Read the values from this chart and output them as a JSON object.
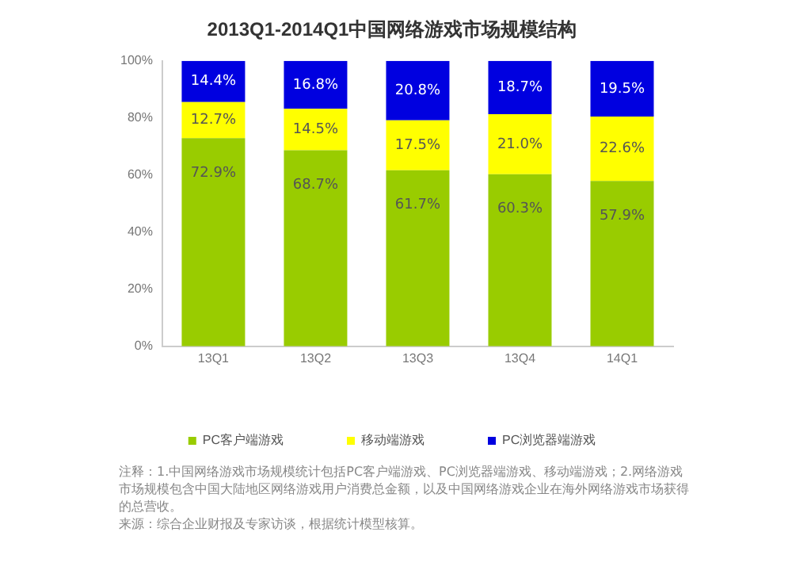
{
  "chart_data": {
    "type": "bar",
    "stacked": true,
    "title": "2013Q1-2014Q1中国网络游戏市场规模结构",
    "categories": [
      "13Q1",
      "13Q2",
      "13Q3",
      "13Q4",
      "14Q1"
    ],
    "series": [
      {
        "name": "PC客户端游戏",
        "color": "#99cc00",
        "values": [
          72.9,
          68.7,
          61.7,
          60.3,
          57.9
        ],
        "value_labels": [
          "72.9%",
          "68.7%",
          "61.7%",
          "60.3%",
          "57.9%"
        ]
      },
      {
        "name": "移动端游戏",
        "color": "#ffff00",
        "values": [
          12.7,
          14.5,
          17.5,
          21.0,
          22.6
        ],
        "value_labels": [
          "12.7%",
          "14.5%",
          "17.5%",
          "21.0%",
          "22.6%"
        ]
      },
      {
        "name": "PC浏览器端游戏",
        "color": "#0000e0",
        "values": [
          14.4,
          16.8,
          20.8,
          18.7,
          19.5
        ],
        "value_labels": [
          "14.4%",
          "16.8%",
          "20.8%",
          "18.7%",
          "19.5%"
        ]
      }
    ],
    "ylim": [
      0,
      100
    ],
    "yticks": [
      {
        "value": 0,
        "label": "0%"
      },
      {
        "value": 20,
        "label": "20%"
      },
      {
        "value": 40,
        "label": "40%"
      },
      {
        "value": 60,
        "label": "60%"
      },
      {
        "value": 80,
        "label": "80%"
      },
      {
        "value": 100,
        "label": "100%"
      }
    ],
    "grid": false,
    "legend": "bottom",
    "annotations": [
      "注释：1.中国网络游戏市场规模统计包括PC客户端游戏、PC浏览器端游戏、移动端游戏；2.网络游戏市场规模包含中国大陆地区网络游戏用户消费总金额，以及中国网络游戏企业在海外网络游戏市场获得的总营收。",
      "来源：综合企业财报及专家访谈，根据统计模型核算。"
    ]
  }
}
